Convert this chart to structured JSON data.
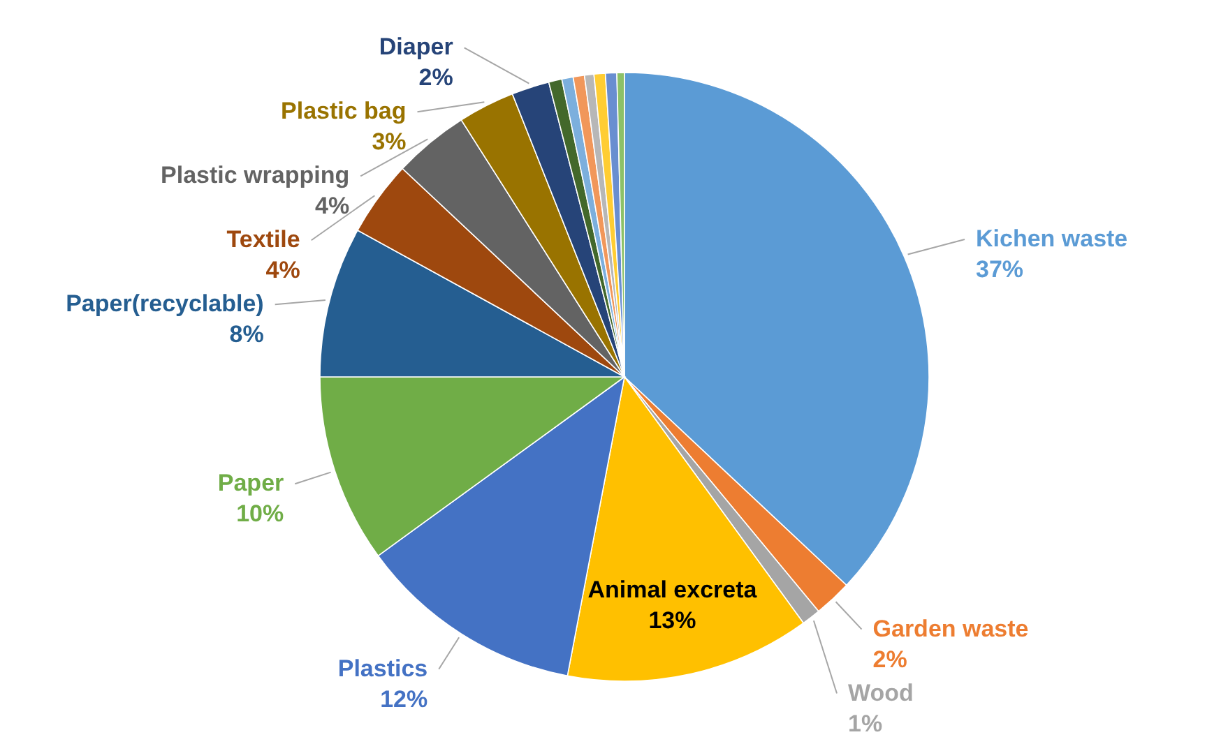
{
  "chart_data": {
    "type": "pie",
    "categories": [
      "Kichen waste",
      "Garden waste",
      "Wood",
      "Animal excreta",
      "Plastics",
      "Paper",
      "Paper(recyclable)",
      "Textile",
      "Plastic wrapping",
      "Plastic bag",
      "Diaper",
      null,
      null,
      null,
      null,
      null,
      null,
      null
    ],
    "values": [
      37,
      2,
      1,
      13,
      12,
      10,
      8,
      4,
      4,
      3,
      2,
      0.7,
      0.6,
      0.6,
      0.5,
      0.6,
      0.6,
      0.4
    ],
    "value_labels": [
      "37%",
      "2%",
      "1%",
      "13%",
      "12%",
      "10%",
      "8%",
      "4%",
      "4%",
      "3%",
      "2%",
      null,
      null,
      null,
      null,
      null,
      null,
      null
    ],
    "colors": [
      "#5b9bd5",
      "#ed7d31",
      "#a5a5a5",
      "#ffc000",
      "#4472c4",
      "#70ad47",
      "#255e91",
      "#9e480e",
      "#636363",
      "#997300",
      "#264478",
      "#43682b",
      "#7cafdd",
      "#f1975a",
      "#b7b7b7",
      "#ffcd33",
      "#698ed0",
      "#8cc168"
    ],
    "legend": false
  }
}
